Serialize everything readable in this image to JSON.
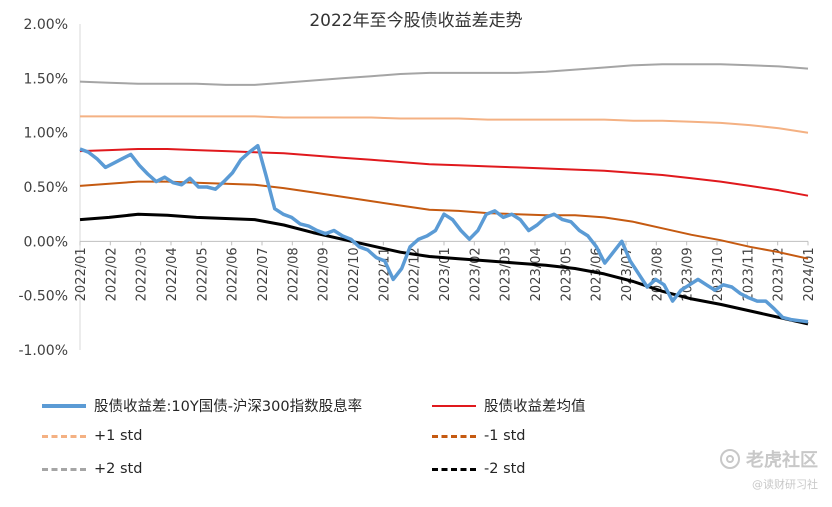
{
  "chart_data": {
    "type": "line",
    "title": "2022年至今股债收益差走势",
    "y_ticks": [
      "2.00%",
      "1.50%",
      "1.00%",
      "0.50%",
      "0.00%",
      "-0.50%",
      "-1.00%"
    ],
    "ylim": [
      -1.0,
      2.0
    ],
    "x_ticks": [
      "2022/01",
      "2022/02",
      "2022/03",
      "2022/04",
      "2022/05",
      "2022/06",
      "2022/07",
      "2022/08",
      "2022/09",
      "2022/10",
      "2022/11",
      "2022/12",
      "2023/01",
      "2023/02",
      "2023/03",
      "2023/04",
      "2023/05",
      "2023/06",
      "2023/07",
      "2023/08",
      "2023/09",
      "2023/10",
      "2023/11",
      "2023/12",
      "2024/01"
    ],
    "series": [
      {
        "name": "股债收益差:10Y国债-沪深300指数股息率",
        "color": "#5b9bd5",
        "style": "solid",
        "values": [
          0.85,
          0.82,
          0.76,
          0.68,
          0.72,
          0.76,
          0.8,
          0.7,
          0.62,
          0.55,
          0.59,
          0.54,
          0.52,
          0.58,
          0.5,
          0.5,
          0.48,
          0.55,
          0.63,
          0.75,
          0.82,
          0.88,
          0.6,
          0.3,
          0.25,
          0.22,
          0.16,
          0.14,
          0.1,
          0.07,
          0.1,
          0.05,
          0.02,
          -0.05,
          -0.08,
          -0.15,
          -0.18,
          -0.35,
          -0.25,
          -0.05,
          0.02,
          0.05,
          0.1,
          0.25,
          0.2,
          0.1,
          0.02,
          0.1,
          0.25,
          0.28,
          0.22,
          0.25,
          0.2,
          0.1,
          0.15,
          0.22,
          0.25,
          0.2,
          0.18,
          0.1,
          0.05,
          -0.05,
          -0.2,
          -0.1,
          0.0,
          -0.18,
          -0.3,
          -0.42,
          -0.35,
          -0.4,
          -0.55,
          -0.45,
          -0.4,
          -0.35,
          -0.4,
          -0.45,
          -0.4,
          -0.42,
          -0.48,
          -0.52,
          -0.55,
          -0.55,
          -0.62,
          -0.7,
          -0.72,
          -0.73,
          -0.74
        ]
      },
      {
        "name": "股债收益差均值",
        "color": "#e0191d",
        "style": "solid",
        "values": [
          0.83,
          0.84,
          0.85,
          0.85,
          0.84,
          0.83,
          0.82,
          0.81,
          0.79,
          0.77,
          0.75,
          0.73,
          0.71,
          0.7,
          0.69,
          0.68,
          0.67,
          0.66,
          0.65,
          0.63,
          0.61,
          0.58,
          0.55,
          0.51,
          0.47,
          0.42
        ]
      },
      {
        "name": "+1 std",
        "color": "#f4b183",
        "style": "dashed",
        "values": [
          1.15,
          1.15,
          1.15,
          1.15,
          1.15,
          1.15,
          1.15,
          1.14,
          1.14,
          1.14,
          1.14,
          1.13,
          1.13,
          1.13,
          1.12,
          1.12,
          1.12,
          1.12,
          1.12,
          1.11,
          1.11,
          1.1,
          1.09,
          1.07,
          1.04,
          1.0
        ]
      },
      {
        "name": "-1 std",
        "color": "#c55a11",
        "style": "dashed",
        "values": [
          0.51,
          0.53,
          0.55,
          0.55,
          0.54,
          0.53,
          0.52,
          0.49,
          0.45,
          0.41,
          0.37,
          0.33,
          0.29,
          0.28,
          0.26,
          0.25,
          0.24,
          0.24,
          0.22,
          0.18,
          0.12,
          0.06,
          0.01,
          -0.05,
          -0.1,
          -0.16
        ]
      },
      {
        "name": "+2 std",
        "color": "#a5a5a5",
        "style": "dashed",
        "values": [
          1.47,
          1.46,
          1.45,
          1.45,
          1.45,
          1.44,
          1.44,
          1.46,
          1.48,
          1.5,
          1.52,
          1.54,
          1.55,
          1.55,
          1.55,
          1.55,
          1.56,
          1.58,
          1.6,
          1.62,
          1.63,
          1.63,
          1.63,
          1.62,
          1.61,
          1.59
        ]
      },
      {
        "name": "-2 std",
        "color": "#000000",
        "style": "dashed",
        "values": [
          0.2,
          0.22,
          0.25,
          0.24,
          0.22,
          0.21,
          0.2,
          0.15,
          0.08,
          0.02,
          -0.04,
          -0.1,
          -0.14,
          -0.16,
          -0.18,
          -0.2,
          -0.22,
          -0.25,
          -0.3,
          -0.37,
          -0.46,
          -0.53,
          -0.58,
          -0.64,
          -0.7,
          -0.76
        ]
      }
    ],
    "legend_position": "bottom",
    "grid": false
  },
  "watermark": {
    "brand": "老虎社区",
    "handle": "@读财研习社"
  }
}
